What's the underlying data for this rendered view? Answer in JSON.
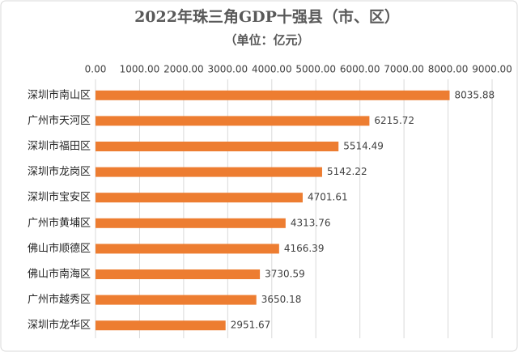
{
  "chart_data": {
    "type": "bar",
    "orientation": "horizontal",
    "title": "2022年珠三角GDP十强县（市、区）",
    "subtitle": "（单位：亿元）",
    "categories": [
      "深圳市南山区",
      "广州市天河区",
      "深圳市福田区",
      "深圳市龙岗区",
      "深圳市宝安区",
      "广州市黄埔区",
      "佛山市顺德区",
      "佛山市南海区",
      "广州市越秀区",
      "深圳市龙华区"
    ],
    "values": [
      8035.88,
      6215.72,
      5514.49,
      5142.22,
      4701.61,
      4313.76,
      4166.39,
      3730.59,
      3650.18,
      2951.67
    ],
    "color": "#ed7d31",
    "xlim": [
      0,
      9000
    ],
    "xticks": [
      {
        "value": 0,
        "label": "0.00"
      },
      {
        "value": 1000,
        "label": "1000.00"
      },
      {
        "value": 2000,
        "label": "2000.00"
      },
      {
        "value": 3000,
        "label": "3000.00"
      },
      {
        "value": 4000,
        "label": "4000.00"
      },
      {
        "value": 5000,
        "label": "5000.00"
      },
      {
        "value": 6000,
        "label": "6000.00"
      },
      {
        "value": 7000,
        "label": "7000.00"
      },
      {
        "value": 8000,
        "label": "8000.00"
      },
      {
        "value": 9000,
        "label": "9000.00"
      }
    ],
    "grid": true
  }
}
